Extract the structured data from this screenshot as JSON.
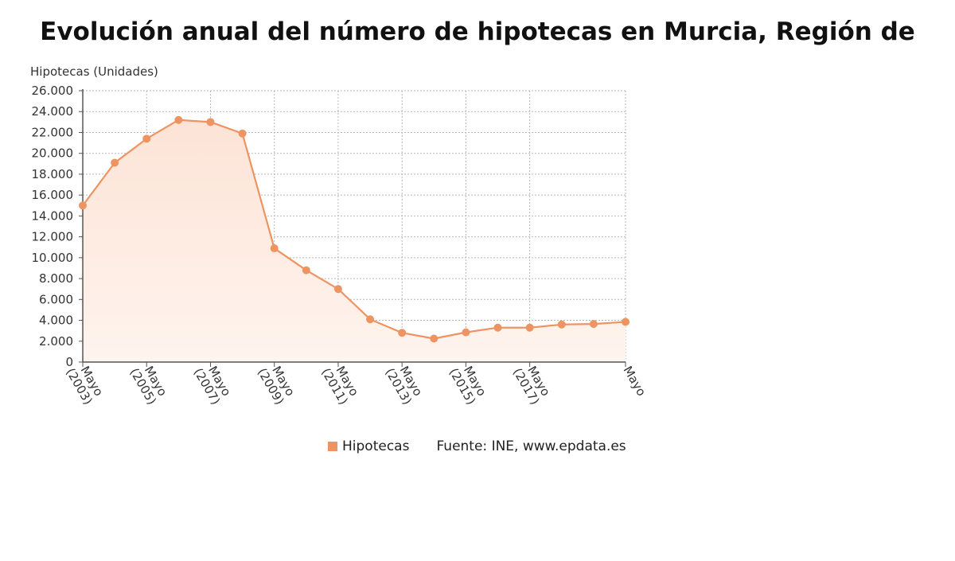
{
  "title": "Evolución anual del número de hipotecas en Murcia, Región de",
  "legend": {
    "series_label": "Hipotecas",
    "source": "Fuente: INE, www.epdata.es"
  },
  "colors": {
    "line": "#ee9462",
    "fill_top": "#fde3d6",
    "fill_bottom": "#fef4ee",
    "grid": "#b7b7b7",
    "axis": "#555555"
  },
  "chart_data": {
    "type": "area",
    "ylabel": "Hipotecas (Unidades)",
    "ylim": [
      0,
      26000
    ],
    "ytick_labels": [
      "0",
      "2.000",
      "4.000",
      "6.000",
      "8.000",
      "10.000",
      "12.000",
      "14.000",
      "16.000",
      "18.000",
      "20.000",
      "22.000",
      "24.000",
      "26.000"
    ],
    "xtick_labels": [
      {
        "line1": "Mayo",
        "line2": "(2003)"
      },
      {
        "line1": "Mayo",
        "line2": "(2005)"
      },
      {
        "line1": "Mayo",
        "line2": "(2007)"
      },
      {
        "line1": "Mayo",
        "line2": "(2009)"
      },
      {
        "line1": "Mayo",
        "line2": "(2011)"
      },
      {
        "line1": "Mayo",
        "line2": "(2013)"
      },
      {
        "line1": "Mayo",
        "line2": "(2015)"
      },
      {
        "line1": "Mayo",
        "line2": "(2017)"
      },
      {
        "line1": "Mayo",
        "line2": ""
      }
    ],
    "x": [
      2003,
      2004,
      2005,
      2006,
      2007,
      2008,
      2009,
      2010,
      2011,
      2012,
      2013,
      2014,
      2015,
      2016,
      2017,
      2018,
      2019,
      2020
    ],
    "grid": true,
    "legend_position": "bottom",
    "series": [
      {
        "name": "Hipotecas",
        "values": [
          15000,
          19100,
          21400,
          23200,
          23000,
          21900,
          10900,
          8800,
          7000,
          4100,
          2800,
          2250,
          2850,
          3300,
          3300,
          3600,
          3650,
          3850
        ]
      }
    ]
  }
}
